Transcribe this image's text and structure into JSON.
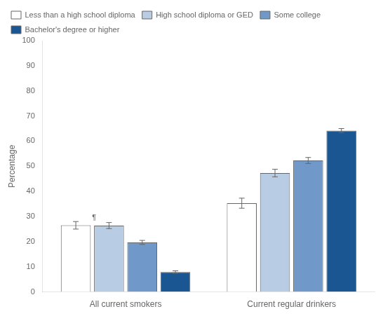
{
  "chart_data": {
    "type": "bar",
    "categories": [
      "All current smokers",
      "Current regular drinkers"
    ],
    "series": [
      {
        "name": "Less than a high school diploma",
        "color": "#ffffff",
        "values": [
          26.5,
          35.3
        ],
        "errors": [
          1.5,
          2.0
        ]
      },
      {
        "name": "High school diploma or GED",
        "color": "#b8cce4",
        "values": [
          26.4,
          47.3
        ],
        "errors": [
          1.2,
          1.5
        ]
      },
      {
        "name": "Some college",
        "color": "#7098c8",
        "values": [
          19.7,
          52.3
        ],
        "errors": [
          0.8,
          1.2
        ]
      },
      {
        "name": "Bachelor's degree or higher",
        "color": "#1a5692",
        "values": [
          7.9,
          64.2
        ],
        "errors": [
          0.5,
          0.8
        ]
      }
    ],
    "ylabel": "Percentage",
    "ylim": [
      0,
      100
    ],
    "yticks": [
      0,
      10,
      20,
      30,
      40,
      50,
      60,
      70,
      80,
      90,
      100
    ],
    "grid": false,
    "legend": "upper left",
    "annotations": [
      {
        "text": "¶",
        "category": "All current smokers",
        "series": "Less than a high school diploma",
        "y": 27.8
      }
    ]
  }
}
